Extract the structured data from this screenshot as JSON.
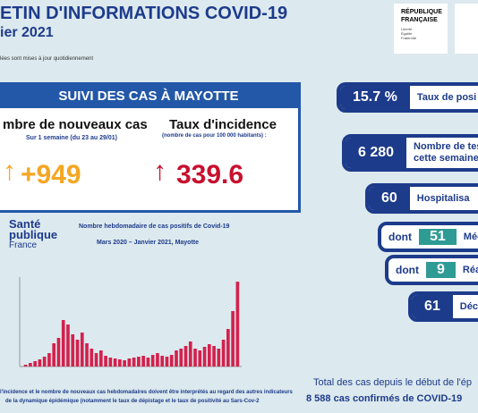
{
  "header": {
    "title": "ETIN D'INFORMATIONS COVID-19",
    "date": "ier 2021",
    "note": "lées sont mises à jour quotidiennement",
    "logo": {
      "line1": "RÉPUBLIQUE",
      "line2": "FRANÇAISE",
      "motto": "Liberté Égalité Fraternité"
    }
  },
  "card": {
    "title": "SUIVI DES CAS À MAYOTTE",
    "left": {
      "label": "mbre de nouveaux cas",
      "sub": "Sur 1 semaine (du 23 au 29/01)",
      "value": "+949"
    },
    "right": {
      "label": "Taux d'incidence",
      "sub": "(nombre de cas pour 100 000 habitants) :",
      "value": "339.6"
    }
  },
  "source": {
    "line1": "Santé",
    "line2": "publique",
    "line3": "France"
  },
  "chart": {
    "type": "bar",
    "title": "Nombre hebdomadaire de cas positifs de Covid-19",
    "subtitle": "Mars 2020 – Janvier 2021, Mayotte",
    "color": "#d3214d",
    "ylim": [
      0,
      1000
    ],
    "values": [
      20,
      40,
      60,
      80,
      110,
      150,
      260,
      320,
      520,
      470,
      360,
      300,
      380,
      260,
      200,
      150,
      180,
      120,
      100,
      90,
      80,
      70,
      90,
      100,
      110,
      120,
      100,
      130,
      150,
      120,
      110,
      130,
      180,
      200,
      230,
      280,
      200,
      180,
      220,
      250,
      230,
      200,
      300,
      420,
      620,
      949
    ]
  },
  "footnote": {
    "line1": "l'incidence et le nombre de nouveaux cas hebdomadaires doivent être interprétés au regard des autres indicateurs",
    "line2": "de la dynamique épidémique (notamment le taux de dépistage et le taux de positivité au Sars-Cov-2"
  },
  "indicators": [
    {
      "value": "15.7 %",
      "label": "Taux de posi"
    },
    {
      "value": "6 280",
      "label": "Nombre de test",
      "label2": "cette semaine"
    },
    {
      "value": "60",
      "label": "Hospitalisa"
    },
    {
      "prefix": "dont",
      "value": "51",
      "label": "Méde"
    },
    {
      "prefix": "dont",
      "value": "9",
      "label": "Réani"
    },
    {
      "value": "61",
      "label": "Décès"
    }
  ],
  "total": {
    "line1": "Total des cas depuis le début de l'ép",
    "line2": "8 588 cas confirmés de COVID-19"
  }
}
